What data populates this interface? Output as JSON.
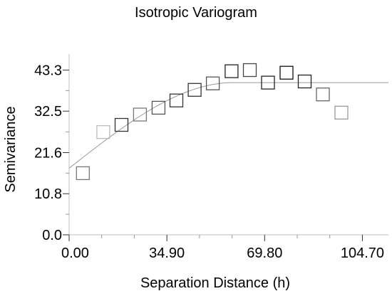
{
  "chart_data": {
    "type": "scatter",
    "title": "Isotropic Variogram",
    "xlabel": "Separation Distance (h)",
    "ylabel": "Semivariance",
    "xlim": [
      0,
      114
    ],
    "ylim": [
      0,
      47.5
    ],
    "x_ticks": [
      0,
      34.9,
      69.8,
      104.7
    ],
    "x_tick_labels": [
      "0.00",
      "34.90",
      "69.80",
      "104.70"
    ],
    "y_ticks": [
      0,
      10.8,
      21.6,
      32.5,
      43.3
    ],
    "y_tick_labels": [
      "0.0",
      "10.8",
      "21.6",
      "32.5",
      "43.3"
    ],
    "grid": false,
    "series": [
      {
        "type": "scatter",
        "marker": "open-square",
        "x": [
          4.9,
          12.2,
          18.7,
          25.3,
          31.9,
          38.3,
          44.8,
          51.3,
          58.0,
          64.5,
          71.0,
          77.6,
          84.1,
          90.6,
          97.2
        ],
        "y": [
          16.2,
          27.0,
          28.9,
          31.6,
          33.4,
          35.3,
          38.1,
          39.8,
          43.0,
          43.3,
          40.0,
          42.6,
          40.3,
          36.9,
          32.1
        ],
        "shades": [
          "#777777",
          "#bbbbbb",
          "#333333",
          "#777777",
          "#555555",
          "#333333",
          "#333333",
          "#555555",
          "#222222",
          "#444444",
          "#222222",
          "#111111",
          "#222222",
          "#666666",
          "#999999"
        ]
      },
      {
        "type": "line",
        "model": "spherical",
        "nugget": 17.5,
        "sill": 40.0,
        "range": 58.5,
        "x_max": 114,
        "color": "#999999"
      }
    ]
  }
}
